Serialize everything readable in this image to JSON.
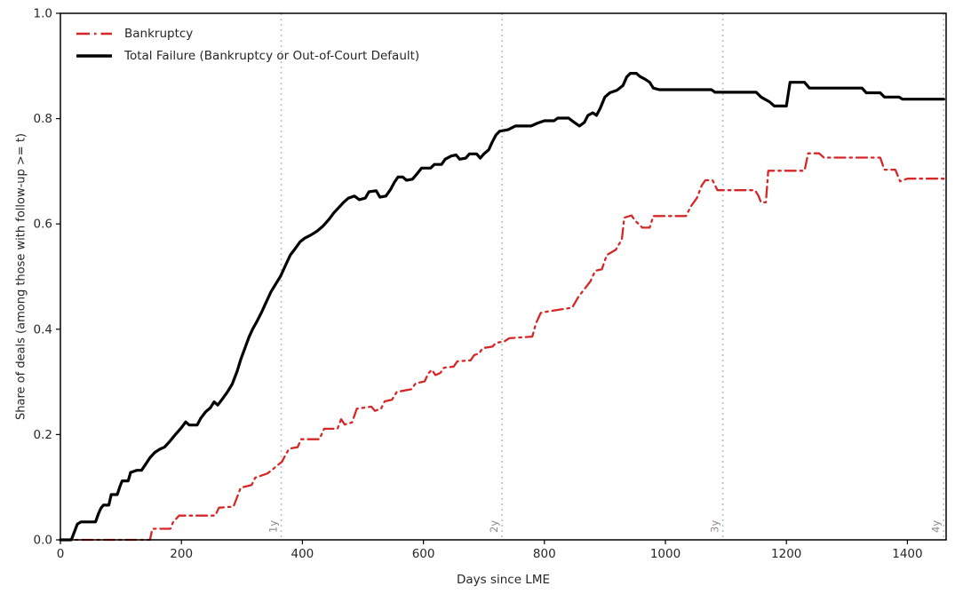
{
  "chart_data": {
    "type": "line",
    "title": "",
    "xlabel": "Days since LME",
    "ylabel": "Share of deals (among those with follow-up >= t)",
    "xlim": [
      0,
      1464
    ],
    "ylim": [
      0,
      1.0
    ],
    "x_ticks": [
      0,
      200,
      400,
      600,
      800,
      1000,
      1200,
      1400
    ],
    "y_ticks": [
      0.0,
      0.2,
      0.4,
      0.6,
      0.8,
      1.0
    ],
    "grid": false,
    "legend_position": "upper left",
    "axis_color": "#000000",
    "tick_label_color": "#262626",
    "vline_color": "#a8c6d6",
    "vline_label_color": "#8a8a8a",
    "vlines": [
      {
        "x": 365,
        "label": "1y"
      },
      {
        "x": 730,
        "label": "2y"
      },
      {
        "x": 1095,
        "label": "3y"
      },
      {
        "x": 1460,
        "label": "4y"
      }
    ],
    "series": [
      {
        "name": "Bankruptcy",
        "color": "#d62728",
        "style": "dashdot",
        "width": 2.3,
        "points": [
          [
            0,
            0
          ],
          [
            148,
            0
          ],
          [
            152,
            0.021
          ],
          [
            182,
            0.021
          ],
          [
            186,
            0.033
          ],
          [
            196,
            0.046
          ],
          [
            256,
            0.046
          ],
          [
            262,
            0.061
          ],
          [
            286,
            0.063
          ],
          [
            292,
            0.081
          ],
          [
            298,
            0.099
          ],
          [
            316,
            0.104
          ],
          [
            322,
            0.118
          ],
          [
            342,
            0.126
          ],
          [
            350,
            0.133
          ],
          [
            358,
            0.141
          ],
          [
            366,
            0.148
          ],
          [
            372,
            0.161
          ],
          [
            378,
            0.173
          ],
          [
            392,
            0.176
          ],
          [
            398,
            0.191
          ],
          [
            428,
            0.191
          ],
          [
            436,
            0.211
          ],
          [
            458,
            0.211
          ],
          [
            464,
            0.229
          ],
          [
            470,
            0.219
          ],
          [
            482,
            0.223
          ],
          [
            490,
            0.249
          ],
          [
            514,
            0.253
          ],
          [
            520,
            0.245
          ],
          [
            530,
            0.249
          ],
          [
            536,
            0.263
          ],
          [
            548,
            0.266
          ],
          [
            556,
            0.281
          ],
          [
            580,
            0.286
          ],
          [
            587,
            0.297
          ],
          [
            602,
            0.301
          ],
          [
            608,
            0.316
          ],
          [
            614,
            0.323
          ],
          [
            620,
            0.313
          ],
          [
            628,
            0.317
          ],
          [
            634,
            0.327
          ],
          [
            650,
            0.329
          ],
          [
            656,
            0.339
          ],
          [
            678,
            0.341
          ],
          [
            684,
            0.351
          ],
          [
            692,
            0.354
          ],
          [
            698,
            0.364
          ],
          [
            714,
            0.367
          ],
          [
            720,
            0.374
          ],
          [
            734,
            0.377
          ],
          [
            742,
            0.383
          ],
          [
            780,
            0.386
          ],
          [
            786,
            0.411
          ],
          [
            794,
            0.431
          ],
          [
            802,
            0.433
          ],
          [
            846,
            0.441
          ],
          [
            856,
            0.461
          ],
          [
            866,
            0.476
          ],
          [
            876,
            0.491
          ],
          [
            884,
            0.511
          ],
          [
            895,
            0.514
          ],
          [
            903,
            0.541
          ],
          [
            918,
            0.551
          ],
          [
            928,
            0.571
          ],
          [
            932,
            0.612
          ],
          [
            944,
            0.616
          ],
          [
            950,
            0.606
          ],
          [
            962,
            0.593
          ],
          [
            974,
            0.593
          ],
          [
            980,
            0.615
          ],
          [
            1034,
            0.615
          ],
          [
            1042,
            0.633
          ],
          [
            1052,
            0.649
          ],
          [
            1060,
            0.673
          ],
          [
            1066,
            0.683
          ],
          [
            1078,
            0.683
          ],
          [
            1086,
            0.664
          ],
          [
            1148,
            0.664
          ],
          [
            1154,
            0.653
          ],
          [
            1158,
            0.641
          ],
          [
            1166,
            0.641
          ],
          [
            1170,
            0.701
          ],
          [
            1230,
            0.701
          ],
          [
            1236,
            0.734
          ],
          [
            1254,
            0.734
          ],
          [
            1262,
            0.726
          ],
          [
            1355,
            0.726
          ],
          [
            1362,
            0.703
          ],
          [
            1380,
            0.703
          ],
          [
            1388,
            0.681
          ],
          [
            1400,
            0.686
          ],
          [
            1460,
            0.686
          ]
        ]
      },
      {
        "name": "Total Failure (Bankruptcy or Out-of-Court Default)",
        "color": "#000000",
        "style": "solid",
        "width": 3.2,
        "points": [
          [
            0,
            0
          ],
          [
            18,
            0
          ],
          [
            22,
            0.012
          ],
          [
            28,
            0.03
          ],
          [
            34,
            0.034
          ],
          [
            58,
            0.034
          ],
          [
            63,
            0.05
          ],
          [
            67,
            0.06
          ],
          [
            71,
            0.066
          ],
          [
            80,
            0.066
          ],
          [
            84,
            0.086
          ],
          [
            94,
            0.086
          ],
          [
            98,
            0.1
          ],
          [
            102,
            0.112
          ],
          [
            112,
            0.112
          ],
          [
            116,
            0.128
          ],
          [
            126,
            0.132
          ],
          [
            134,
            0.132
          ],
          [
            140,
            0.142
          ],
          [
            148,
            0.156
          ],
          [
            156,
            0.166
          ],
          [
            164,
            0.172
          ],
          [
            172,
            0.176
          ],
          [
            180,
            0.186
          ],
          [
            190,
            0.2
          ],
          [
            200,
            0.213
          ],
          [
            207,
            0.224
          ],
          [
            213,
            0.218
          ],
          [
            226,
            0.218
          ],
          [
            232,
            0.231
          ],
          [
            240,
            0.243
          ],
          [
            248,
            0.251
          ],
          [
            254,
            0.262
          ],
          [
            260,
            0.256
          ],
          [
            268,
            0.268
          ],
          [
            276,
            0.281
          ],
          [
            284,
            0.296
          ],
          [
            292,
            0.32
          ],
          [
            298,
            0.342
          ],
          [
            304,
            0.361
          ],
          [
            312,
            0.386
          ],
          [
            318,
            0.401
          ],
          [
            324,
            0.413
          ],
          [
            332,
            0.431
          ],
          [
            340,
            0.451
          ],
          [
            348,
            0.471
          ],
          [
            356,
            0.486
          ],
          [
            364,
            0.501
          ],
          [
            372,
            0.521
          ],
          [
            380,
            0.541
          ],
          [
            388,
            0.553
          ],
          [
            396,
            0.566
          ],
          [
            404,
            0.573
          ],
          [
            414,
            0.579
          ],
          [
            424,
            0.586
          ],
          [
            434,
            0.596
          ],
          [
            444,
            0.609
          ],
          [
            452,
            0.621
          ],
          [
            460,
            0.631
          ],
          [
            468,
            0.641
          ],
          [
            476,
            0.649
          ],
          [
            486,
            0.653
          ],
          [
            494,
            0.646
          ],
          [
            504,
            0.649
          ],
          [
            510,
            0.661
          ],
          [
            522,
            0.663
          ],
          [
            528,
            0.651
          ],
          [
            538,
            0.653
          ],
          [
            546,
            0.666
          ],
          [
            552,
            0.679
          ],
          [
            558,
            0.689
          ],
          [
            566,
            0.689
          ],
          [
            572,
            0.683
          ],
          [
            582,
            0.685
          ],
          [
            590,
            0.696
          ],
          [
            597,
            0.706
          ],
          [
            612,
            0.706
          ],
          [
            618,
            0.713
          ],
          [
            630,
            0.713
          ],
          [
            636,
            0.723
          ],
          [
            646,
            0.729
          ],
          [
            654,
            0.731
          ],
          [
            660,
            0.723
          ],
          [
            670,
            0.725
          ],
          [
            676,
            0.733
          ],
          [
            688,
            0.733
          ],
          [
            694,
            0.725
          ],
          [
            700,
            0.733
          ],
          [
            708,
            0.741
          ],
          [
            714,
            0.756
          ],
          [
            720,
            0.769
          ],
          [
            726,
            0.776
          ],
          [
            740,
            0.779
          ],
          [
            752,
            0.786
          ],
          [
            778,
            0.786
          ],
          [
            788,
            0.791
          ],
          [
            800,
            0.796
          ],
          [
            816,
            0.796
          ],
          [
            822,
            0.801
          ],
          [
            840,
            0.801
          ],
          [
            848,
            0.794
          ],
          [
            858,
            0.786
          ],
          [
            866,
            0.793
          ],
          [
            872,
            0.806
          ],
          [
            880,
            0.811
          ],
          [
            886,
            0.806
          ],
          [
            892,
            0.819
          ],
          [
            900,
            0.841
          ],
          [
            908,
            0.849
          ],
          [
            920,
            0.854
          ],
          [
            930,
            0.863
          ],
          [
            936,
            0.879
          ],
          [
            942,
            0.886
          ],
          [
            952,
            0.886
          ],
          [
            958,
            0.88
          ],
          [
            966,
            0.875
          ],
          [
            974,
            0.869
          ],
          [
            980,
            0.858
          ],
          [
            990,
            0.855
          ],
          [
            1076,
            0.855
          ],
          [
            1082,
            0.85
          ],
          [
            1150,
            0.85
          ],
          [
            1158,
            0.841
          ],
          [
            1172,
            0.832
          ],
          [
            1180,
            0.824
          ],
          [
            1200,
            0.824
          ],
          [
            1206,
            0.869
          ],
          [
            1230,
            0.869
          ],
          [
            1238,
            0.858
          ],
          [
            1325,
            0.858
          ],
          [
            1332,
            0.849
          ],
          [
            1355,
            0.849
          ],
          [
            1362,
            0.841
          ],
          [
            1386,
            0.841
          ],
          [
            1392,
            0.837
          ],
          [
            1460,
            0.837
          ]
        ]
      }
    ]
  }
}
